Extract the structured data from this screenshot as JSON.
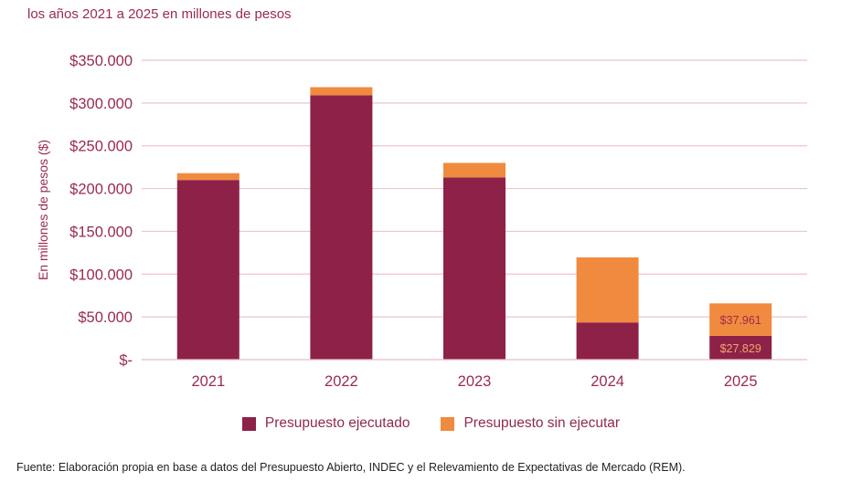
{
  "header": {
    "subtitle": "los años 2021 a 2025 en millones de pesos"
  },
  "colors": {
    "executed": "#8e2148",
    "unexecuted": "#f08a3f",
    "axis_text": "#9b2a4f",
    "grid": "#ecc3cf"
  },
  "chart_data": {
    "type": "bar",
    "stacked": true,
    "categories": [
      "2021",
      "2022",
      "2023",
      "2024",
      "2025"
    ],
    "series": [
      {
        "name": "Presupuesto ejecutado",
        "values": [
          210000,
          309000,
          213000,
          43500,
          27829
        ]
      },
      {
        "name": "Presupuesto sin ejecutar",
        "values": [
          8000,
          9500,
          17000,
          76000,
          37961
        ]
      }
    ],
    "ylabel": "En millones de pesos ($)",
    "ylim": [
      0,
      350000
    ],
    "yticks": [
      0,
      50000,
      100000,
      150000,
      200000,
      250000,
      300000,
      350000
    ],
    "ytick_labels": [
      "$-",
      "$50.000",
      "$100.000",
      "$150.000",
      "$200.000",
      "$250.000",
      "$300.000",
      "$350.000"
    ],
    "data_labels": [
      {
        "category": "2025",
        "series": "Presupuesto sin ejecutar",
        "text": "$37.961"
      },
      {
        "category": "2025",
        "series": "Presupuesto ejecutado",
        "text": "$27.829"
      }
    ],
    "grid": true,
    "legend_position": "bottom"
  },
  "legend": {
    "executed_label": "Presupuesto ejecutado",
    "unexecuted_label": "Presupuesto sin ejecutar"
  },
  "footer": {
    "source": "Fuente: Elaboración propia en base a datos del Presupuesto Abierto, INDEC y el Relevamiento de Expectativas de Mercado (REM)."
  }
}
